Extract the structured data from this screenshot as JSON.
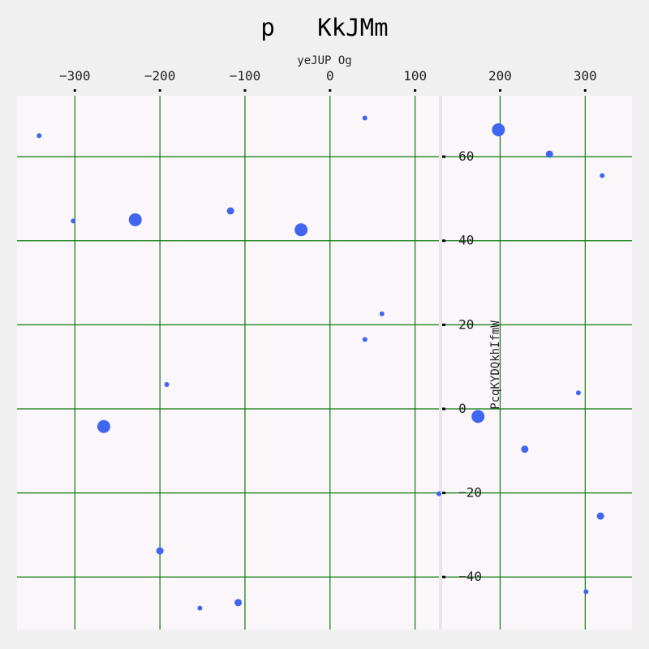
{
  "chart_data": {
    "type": "scatter",
    "title": "p   KkJMm",
    "xlabel": "yeJUP Og",
    "ylabel": "PcqKYDQkhIfmW",
    "xlim": [
      -368,
      355
    ],
    "ylim": [
      -52.5,
      74.5
    ],
    "x_ticks": [
      -300,
      -200,
      -100,
      0,
      100,
      200,
      300
    ],
    "y_ticks": [
      -40,
      -20,
      0,
      20,
      40,
      60
    ],
    "x_tick_labels": [
      "−300",
      "−200",
      "−100",
      "0",
      "100",
      "200",
      "300"
    ],
    "y_tick_labels": [
      "−40",
      "−20",
      "0",
      "20",
      "40",
      "60"
    ],
    "x_axis_position": "top",
    "y_axis_at_x": 130,
    "grid": true,
    "point_color": "#4066f0",
    "grid_color": "#0a7a0a",
    "series": [
      {
        "points": [
          {
            "x": -342,
            "y": 65,
            "size": 3
          },
          {
            "x": -302,
            "y": 44.7,
            "size": 3
          },
          {
            "x": -229,
            "y": 45,
            "size": 8
          },
          {
            "x": -117,
            "y": 47.1,
            "size": 4.5
          },
          {
            "x": -34,
            "y": 42.6,
            "size": 8
          },
          {
            "x": 41,
            "y": 69.2,
            "size": 3
          },
          {
            "x": 61,
            "y": 22.6,
            "size": 3
          },
          {
            "x": 41,
            "y": 16.5,
            "size": 3
          },
          {
            "x": -192,
            "y": 5.8,
            "size": 3
          },
          {
            "x": -266,
            "y": -4.2,
            "size": 8
          },
          {
            "x": 174,
            "y": -1.8,
            "size": 8
          },
          {
            "x": 198,
            "y": 66.4,
            "size": 8
          },
          {
            "x": 258,
            "y": 60.6,
            "size": 4.5
          },
          {
            "x": 320,
            "y": 55.5,
            "size": 3
          },
          {
            "x": 292,
            "y": 3.8,
            "size": 3
          },
          {
            "x": 229,
            "y": -9.6,
            "size": 4.5
          },
          {
            "x": 318,
            "y": -25.5,
            "size": 4.5
          },
          {
            "x": 301,
            "y": -43.5,
            "size": 3
          },
          {
            "x": -200,
            "y": -33.8,
            "size": 4.5
          },
          {
            "x": -108,
            "y": -46.1,
            "size": 4.5
          },
          {
            "x": -153,
            "y": -47.4,
            "size": 3
          },
          {
            "x": 128,
            "y": -20.2,
            "size": 3
          }
        ]
      }
    ]
  }
}
